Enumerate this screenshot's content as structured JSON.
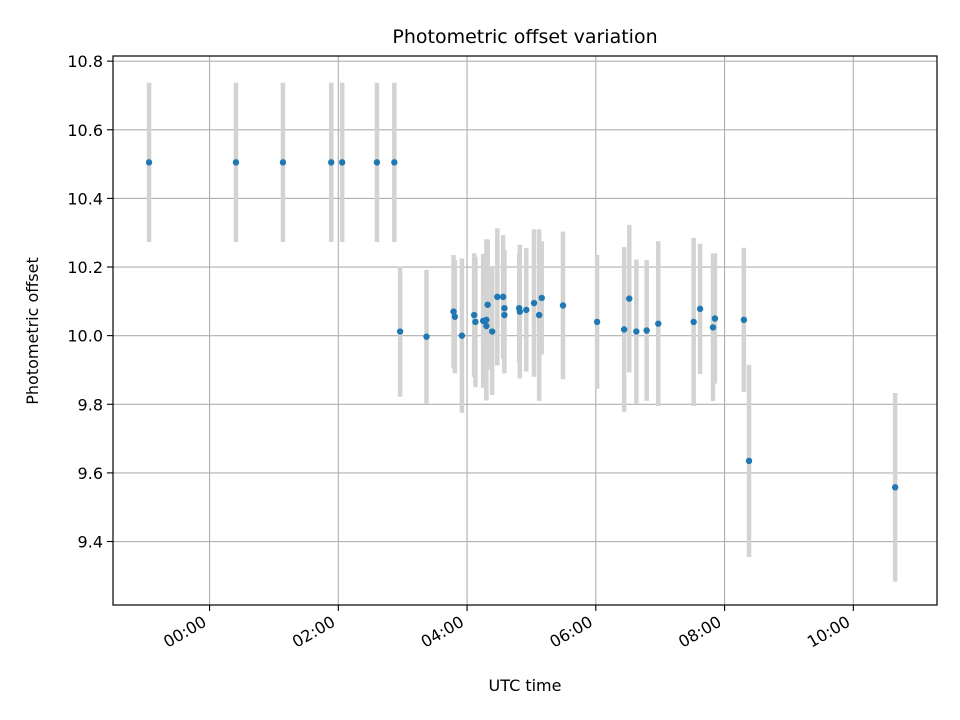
{
  "chart_data": {
    "type": "scatter",
    "title": "Photometric offset variation",
    "xlabel": "UTC time",
    "ylabel": "Photometric offset",
    "x_tick_labels": [
      "00:00",
      "02:00",
      "04:00",
      "06:00",
      "08:00",
      "10:00"
    ],
    "x_tick_hours": [
      0,
      2,
      4,
      6,
      8,
      10
    ],
    "y_tick_labels": [
      "9.4",
      "9.6",
      "9.8",
      "10.0",
      "10.2",
      "10.4",
      "10.6",
      "10.8"
    ],
    "y_ticks": [
      9.4,
      9.6,
      9.8,
      10.0,
      10.2,
      10.4,
      10.6,
      10.8
    ],
    "xlim_hours": [
      -1.5,
      11.3
    ],
    "ylim": [
      9.215,
      10.815
    ],
    "grid": true,
    "legend": "none",
    "colors": {
      "points": "#1f77b4",
      "error_bars": "#d3d3d3",
      "grid": "#b0b0b0"
    },
    "series": [
      {
        "x_hours": [
          -0.94,
          0.41,
          1.14,
          1.89,
          2.06,
          2.6,
          2.87,
          2.96,
          3.37,
          3.79,
          3.81,
          3.92,
          4.11,
          4.13,
          4.25,
          4.3,
          4.3,
          4.32,
          4.39,
          4.47,
          4.56,
          4.58,
          4.58,
          4.81,
          4.82,
          4.92,
          5.04,
          5.12,
          5.16,
          5.49,
          6.02,
          6.44,
          6.52,
          6.63,
          6.79,
          6.97,
          7.52,
          7.62,
          7.82,
          7.85,
          8.3,
          8.38,
          10.65
        ],
        "y": [
          10.505,
          10.505,
          10.505,
          10.505,
          10.505,
          10.505,
          10.505,
          10.012,
          9.997,
          10.07,
          10.055,
          10.0,
          10.06,
          10.04,
          10.043,
          10.046,
          10.028,
          10.09,
          10.012,
          10.113,
          10.113,
          10.08,
          10.06,
          10.08,
          10.07,
          10.075,
          10.095,
          10.06,
          10.11,
          10.088,
          10.04,
          10.018,
          10.108,
          10.012,
          10.015,
          10.035,
          10.04,
          10.078,
          10.024,
          10.05,
          10.046,
          9.635,
          9.558
        ],
        "error": [
          0.232,
          0.232,
          0.232,
          0.232,
          0.232,
          0.232,
          0.232,
          0.19,
          0.195,
          0.165,
          0.165,
          0.225,
          0.18,
          0.19,
          0.195,
          0.235,
          0.215,
          0.19,
          0.185,
          0.2,
          0.18,
          0.17,
          0.17,
          0.158,
          0.195,
          0.18,
          0.215,
          0.25,
          0.165,
          0.215,
          0.195,
          0.24,
          0.215,
          0.21,
          0.205,
          0.24,
          0.245,
          0.19,
          0.215,
          0.19,
          0.21,
          0.28,
          0.275
        ]
      }
    ]
  }
}
